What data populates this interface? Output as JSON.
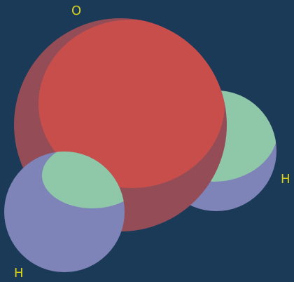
{
  "molecule": {
    "atoms": [
      {
        "id": "o",
        "label": "O",
        "element": "oxygen"
      },
      {
        "id": "h-right",
        "label": "H",
        "element": "hydrogen"
      },
      {
        "id": "h-left",
        "label": "H",
        "element": "hydrogen"
      }
    ]
  },
  "colors": {
    "background": "#1b3a58",
    "oxygen_front": "#c84e4b",
    "oxygen_shadow": "#944d57",
    "hydrogen_front": "#8fc8a8",
    "hydrogen_back": "#7f84b8",
    "label": "#d8d21a"
  }
}
